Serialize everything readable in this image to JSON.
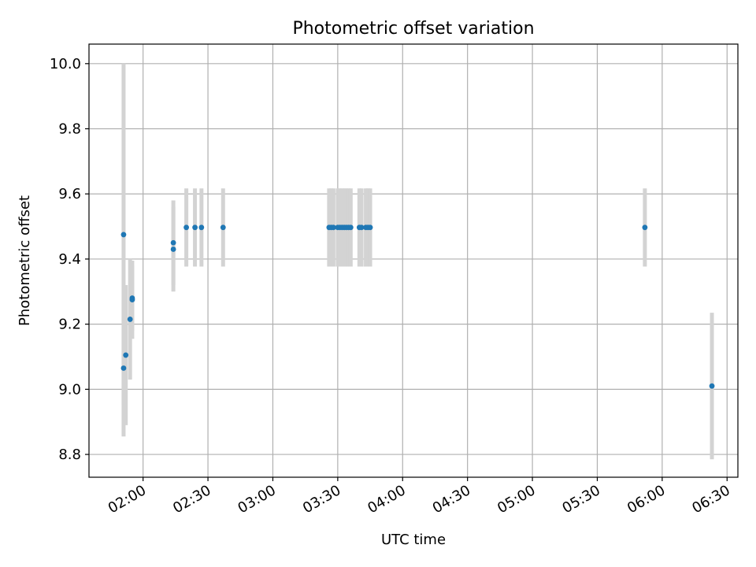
{
  "chart_data": {
    "type": "scatter",
    "title": "Photometric offset variation",
    "xlabel": "UTC time",
    "ylabel": "Photometric offset",
    "x_unit": "UTC HH:MM",
    "xlim": [
      "01:35",
      "06:35"
    ],
    "ylim": [
      8.73,
      10.06
    ],
    "x_ticks": [
      "02:00",
      "02:30",
      "03:00",
      "03:30",
      "04:00",
      "04:30",
      "05:00",
      "05:30",
      "06:00",
      "06:30"
    ],
    "y_ticks": [
      "8.8",
      "9.0",
      "9.2",
      "9.4",
      "9.6",
      "9.8",
      "10.0"
    ],
    "grid": true,
    "point_color": "#1f77b4",
    "errorbar_color": "#d3d3d3",
    "points": [
      {
        "x": "01:51",
        "y": 9.475,
        "yerr": 0.525
      },
      {
        "x": "01:51",
        "y": 9.065,
        "yerr": 0.21
      },
      {
        "x": "01:52",
        "y": 9.105,
        "yerr": 0.215
      },
      {
        "x": "01:54",
        "y": 9.215,
        "yerr": 0.185
      },
      {
        "x": "01:55",
        "y": 9.275,
        "yerr": 0.12
      },
      {
        "x": "01:55",
        "y": 9.28,
        "yerr": 0.1
      },
      {
        "x": "02:14",
        "y": 9.45,
        "yerr": 0.13
      },
      {
        "x": "02:14",
        "y": 9.43,
        "yerr": 0.13
      },
      {
        "x": "02:20",
        "y": 9.497,
        "yerr": 0.12
      },
      {
        "x": "02:24",
        "y": 9.497,
        "yerr": 0.12
      },
      {
        "x": "02:27",
        "y": 9.497,
        "yerr": 0.12
      },
      {
        "x": "02:37",
        "y": 9.497,
        "yerr": 0.12
      },
      {
        "x": "03:26",
        "y": 9.497,
        "yerr": 0.12
      },
      {
        "x": "03:27",
        "y": 9.497,
        "yerr": 0.12
      },
      {
        "x": "03:28",
        "y": 9.497,
        "yerr": 0.12
      },
      {
        "x": "03:30",
        "y": 9.497,
        "yerr": 0.12
      },
      {
        "x": "03:31",
        "y": 9.497,
        "yerr": 0.12
      },
      {
        "x": "03:32",
        "y": 9.497,
        "yerr": 0.12
      },
      {
        "x": "03:33",
        "y": 9.497,
        "yerr": 0.12
      },
      {
        "x": "03:34",
        "y": 9.497,
        "yerr": 0.12
      },
      {
        "x": "03:35",
        "y": 9.497,
        "yerr": 0.12
      },
      {
        "x": "03:36",
        "y": 9.497,
        "yerr": 0.12
      },
      {
        "x": "03:40",
        "y": 9.497,
        "yerr": 0.12
      },
      {
        "x": "03:41",
        "y": 9.497,
        "yerr": 0.12
      },
      {
        "x": "03:43",
        "y": 9.497,
        "yerr": 0.12
      },
      {
        "x": "03:44",
        "y": 9.497,
        "yerr": 0.12
      },
      {
        "x": "03:45",
        "y": 9.497,
        "yerr": 0.12
      },
      {
        "x": "05:52",
        "y": 9.497,
        "yerr": 0.12
      },
      {
        "x": "06:23",
        "y": 9.01,
        "yerr": 0.225
      }
    ]
  }
}
